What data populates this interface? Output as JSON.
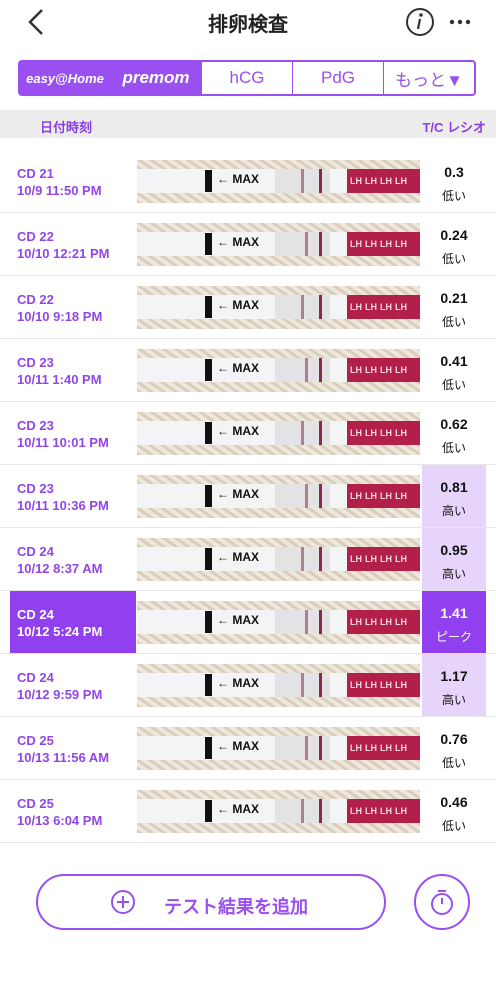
{
  "header": {
    "title": "排卵検査"
  },
  "tabs": [
    {
      "label": "easy@Home",
      "active": true
    },
    {
      "label": "premom",
      "active": true
    },
    {
      "label": "hCG",
      "active": false
    },
    {
      "label": "PdG",
      "active": false
    },
    {
      "label": "もっと▼",
      "active": false
    }
  ],
  "columns": {
    "date": "日付時刻",
    "ratio": "T/C レシオ"
  },
  "strip": {
    "max": "MAX",
    "brand": "LH"
  },
  "rows": [
    {
      "cd": "CD 21",
      "datetime": "10/9 11:50 PM",
      "ratio": 0.3,
      "level": "低い",
      "selected": false
    },
    {
      "cd": "CD 22",
      "datetime": "10/10 12:21 PM",
      "ratio": 0.24,
      "level": "低い",
      "selected": false
    },
    {
      "cd": "CD 22",
      "datetime": "10/10 9:18 PM",
      "ratio": 0.21,
      "level": "低い",
      "selected": false
    },
    {
      "cd": "CD 23",
      "datetime": "10/11 1:40 PM",
      "ratio": 0.41,
      "level": "低い",
      "selected": false
    },
    {
      "cd": "CD 23",
      "datetime": "10/11 10:01 PM",
      "ratio": 0.62,
      "level": "低い",
      "selected": false
    },
    {
      "cd": "CD 23",
      "datetime": "10/11 10:36 PM",
      "ratio": 0.81,
      "level": "高い",
      "selected": false
    },
    {
      "cd": "CD 24",
      "datetime": "10/12 8:37 AM",
      "ratio": 0.95,
      "level": "高い",
      "selected": false
    },
    {
      "cd": "CD 24",
      "datetime": "10/12 5:24 PM",
      "ratio": 1.41,
      "level": "ピーク",
      "selected": true
    },
    {
      "cd": "CD 24",
      "datetime": "10/12 9:59 PM",
      "ratio": 1.17,
      "level": "高い",
      "selected": false
    },
    {
      "cd": "CD 25",
      "datetime": "10/13 11:56 AM",
      "ratio": 0.76,
      "level": "低い",
      "selected": false
    },
    {
      "cd": "CD 25",
      "datetime": "10/13 6:04 PM",
      "ratio": 0.46,
      "level": "低い",
      "selected": false
    }
  ],
  "button": {
    "label": "テスト結果を追加"
  }
}
